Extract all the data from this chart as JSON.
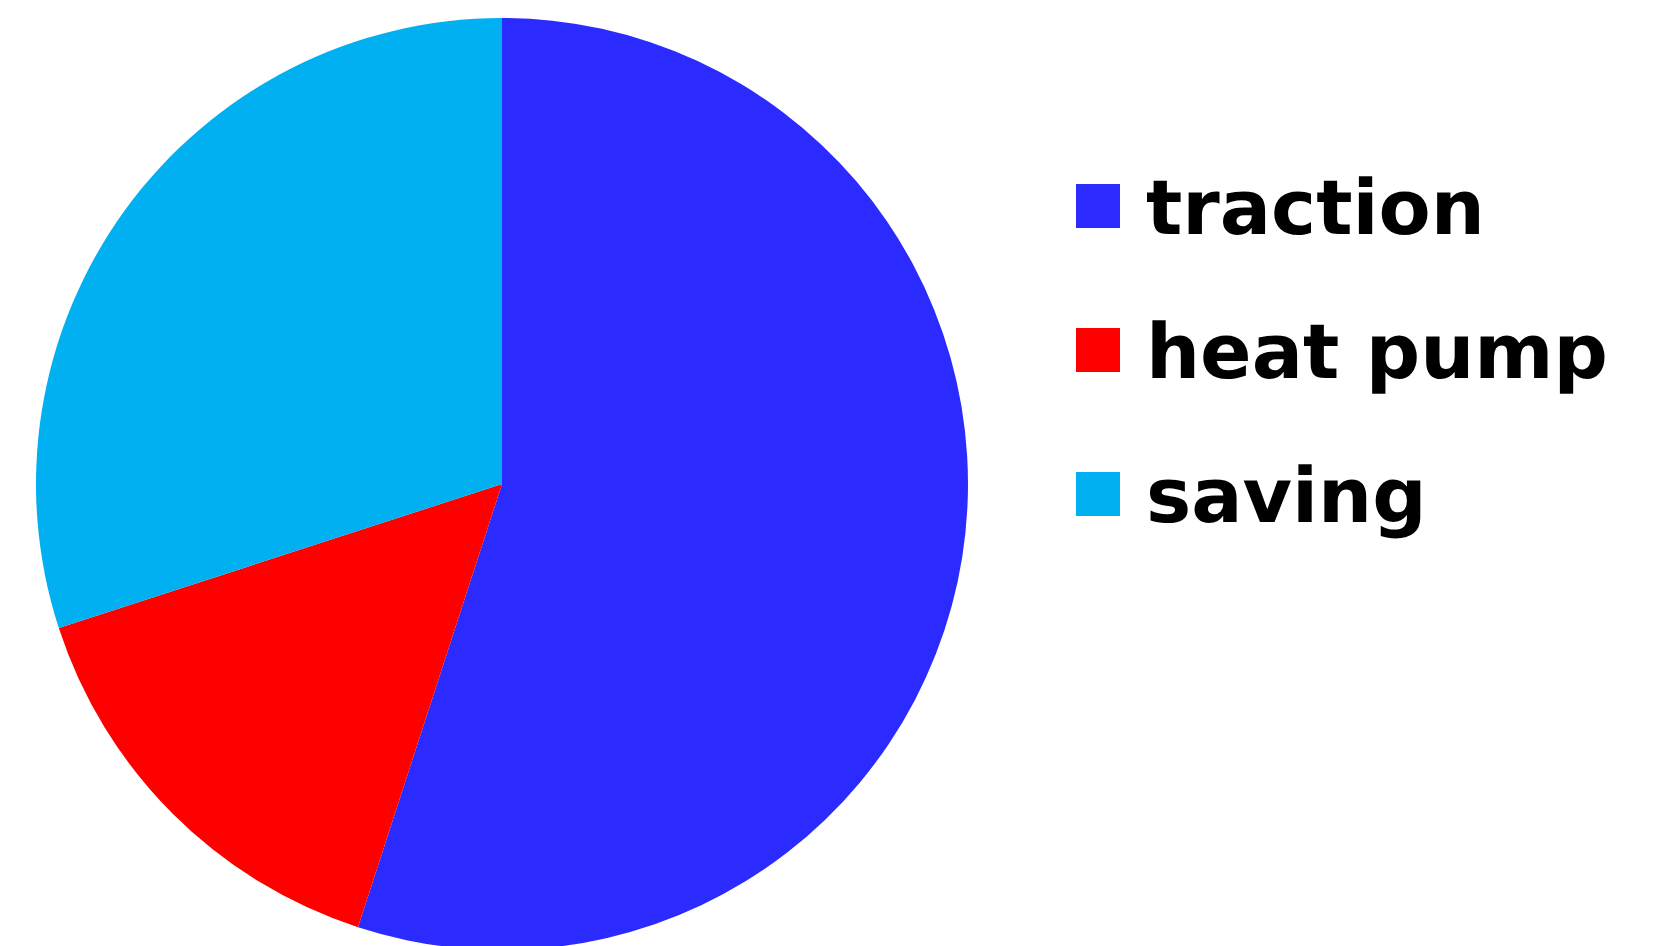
{
  "chart_data": {
    "type": "pie",
    "categories": [
      "traction",
      "heat pump",
      "saving"
    ],
    "values": [
      55,
      15,
      30
    ],
    "colors": [
      "#2b2bff",
      "#ff0000",
      "#00b0f0"
    ],
    "legend": "right"
  }
}
